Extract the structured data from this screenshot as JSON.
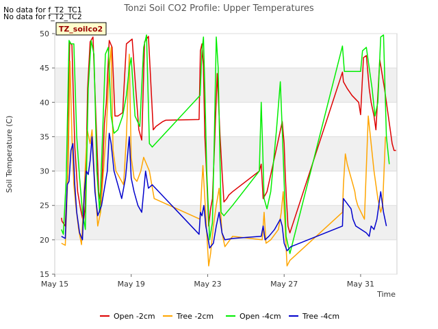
{
  "no_data": [
    "No data for f_T2_TC1",
    "No data for f_T2_TC2"
  ],
  "site_label": "TZ_soilco2",
  "chart_data": {
    "type": "line",
    "title": "Tonzi Soil CO2 Profile: Upper Temperatures",
    "xlabel": "Time",
    "ylabel": "Soil Temperature (C)",
    "ylim": [
      15,
      50
    ],
    "yticks": [
      15,
      20,
      25,
      30,
      35,
      40,
      45,
      50
    ],
    "xlim": [
      15,
      32.9
    ],
    "xticks": [
      {
        "v": 15,
        "label": "May 15"
      },
      {
        "v": 19,
        "label": "May 19"
      },
      {
        "v": 23,
        "label": "May 23"
      },
      {
        "v": 27,
        "label": "May 27"
      },
      {
        "v": 31,
        "label": "May 31"
      }
    ],
    "grid": true,
    "legend": "bottom",
    "series": [
      {
        "name": "Open -2cm",
        "color": "#dd0000",
        "x": [
          15.35,
          15.38,
          15.55,
          15.68,
          15.78,
          15.9,
          16.05,
          16.2,
          16.35,
          16.5,
          16.6,
          16.72,
          16.85,
          17.0,
          17.15,
          17.3,
          17.42,
          17.6,
          17.7,
          17.85,
          18.0,
          18.15,
          18.3,
          18.4,
          18.55,
          18.75,
          19.05,
          19.25,
          19.4,
          19.55,
          19.7,
          19.9,
          20.15,
          20.3,
          20.45,
          20.55,
          20.65,
          20.8,
          22.55,
          22.62,
          22.7,
          22.78,
          22.85,
          22.95,
          23.05,
          23.15,
          23.25,
          23.35,
          23.5,
          23.65,
          23.75,
          23.85,
          24.0,
          24.1,
          24.3,
          25.7,
          25.8,
          25.9,
          26.1,
          26.5,
          26.9,
          27.0,
          27.05,
          27.12,
          27.2,
          27.3,
          30.05,
          30.1,
          30.3,
          30.55,
          30.9,
          31.0,
          31.15,
          31.3,
          31.45,
          31.55,
          31.7,
          31.8,
          32.0,
          32.25,
          32.45,
          32.55,
          32.65,
          32.75,
          32.85
        ],
        "y": [
          23.2,
          22.7,
          22.0,
          29.5,
          48.8,
          48.3,
          33.5,
          27.0,
          24.5,
          22.5,
          25.0,
          42.0,
          48.8,
          49.5,
          38.0,
          27.0,
          25.0,
          37.0,
          40.0,
          49.0,
          48.0,
          38.0,
          38.0,
          38.2,
          38.5,
          48.5,
          49.2,
          41.5,
          36.0,
          34.5,
          48.8,
          49.6,
          36.0,
          36.5,
          36.8,
          37.0,
          37.2,
          37.4,
          37.5,
          47.5,
          48.5,
          45.0,
          35.0,
          29.0,
          22.0,
          24.5,
          26.0,
          33.0,
          44.2,
          35.0,
          30.0,
          25.5,
          26.0,
          26.5,
          27.0,
          30.0,
          31.0,
          26.0,
          27.0,
          32.0,
          37.2,
          34.0,
          30.0,
          26.0,
          22.0,
          21.0,
          44.4,
          43.0,
          42.0,
          41.0,
          40.0,
          38.2,
          46.5,
          46.8,
          42.0,
          40.0,
          38.0,
          36.0,
          46.2,
          42.0,
          38.0,
          36.0,
          34.0,
          33.0,
          33.0
        ]
      },
      {
        "name": "Tree -2cm",
        "color": "#ffa500",
        "x": [
          15.35,
          15.55,
          15.7,
          15.8,
          15.9,
          16.0,
          16.1,
          16.25,
          16.4,
          16.55,
          16.7,
          16.85,
          16.95,
          17.1,
          17.25,
          17.4,
          17.55,
          17.7,
          17.85,
          17.95,
          18.05,
          18.2,
          18.4,
          18.6,
          18.75,
          18.9,
          19.0,
          19.15,
          19.3,
          19.5,
          19.65,
          19.8,
          19.95,
          20.2,
          22.6,
          22.68,
          22.75,
          22.85,
          22.95,
          23.05,
          23.15,
          23.3,
          23.45,
          23.6,
          23.75,
          23.9,
          24.3,
          25.85,
          25.95,
          26.05,
          26.3,
          26.7,
          26.85,
          26.95,
          27.05,
          27.15,
          27.3,
          30.05,
          30.1,
          30.2,
          30.3,
          30.4,
          30.5,
          30.6,
          30.7,
          30.75,
          30.85,
          31.2,
          31.4,
          31.55,
          31.7,
          31.8,
          31.9,
          32.05,
          32.15,
          32.3
        ],
        "y": [
          19.5,
          19.2,
          30.5,
          46.0,
          35.0,
          28.0,
          25.0,
          21.5,
          19.3,
          28.0,
          36.0,
          34.0,
          36.0,
          28.0,
          22.0,
          24.0,
          30.0,
          36.0,
          45.0,
          48.0,
          33.0,
          30.0,
          29.0,
          28.0,
          35.0,
          47.0,
          32.0,
          29.0,
          28.5,
          30.0,
          32.0,
          31.0,
          30.0,
          26.0,
          23.0,
          27.4,
          30.8,
          26.0,
          21.0,
          16.2,
          18.0,
          22.0,
          25.0,
          27.5,
          21.0,
          19.0,
          20.5,
          20.0,
          24.0,
          19.5,
          20.0,
          21.5,
          24.0,
          27.0,
          22.0,
          16.2,
          17.0,
          24.0,
          28.0,
          32.5,
          31.0,
          30.0,
          29.0,
          28.0,
          27.0,
          26.0,
          25.0,
          23.0,
          38.0,
          34.0,
          30.0,
          28.0,
          26.0,
          24.0,
          25.0,
          35.0
        ]
      },
      {
        "name": "Open -4cm",
        "color": "#00ee00",
        "x": [
          15.35,
          15.45,
          15.6,
          15.75,
          15.85,
          16.0,
          16.15,
          16.3,
          16.45,
          16.6,
          16.75,
          16.9,
          17.05,
          17.2,
          17.35,
          17.5,
          17.65,
          17.8,
          17.95,
          18.1,
          18.3,
          18.55,
          18.75,
          18.9,
          19.0,
          19.2,
          19.45,
          19.65,
          19.8,
          19.95,
          20.1,
          22.6,
          22.7,
          22.78,
          22.85,
          22.95,
          23.1,
          23.25,
          23.35,
          23.45,
          23.55,
          23.7,
          23.85,
          24.0,
          24.3,
          25.7,
          25.8,
          25.88,
          25.95,
          26.1,
          26.3,
          26.6,
          26.8,
          26.9,
          26.98,
          27.1,
          27.3,
          30.05,
          30.15,
          30.4,
          31.0,
          31.1,
          31.3,
          31.6,
          31.75,
          31.9,
          32.05,
          32.2,
          32.35,
          32.5
        ],
        "y": [
          21.5,
          20.8,
          29.0,
          49.0,
          48.5,
          48.5,
          35.0,
          29.0,
          24.0,
          21.5,
          42.0,
          49.0,
          47.0,
          30.0,
          24.0,
          35.0,
          47.0,
          48.0,
          38.0,
          35.5,
          36.0,
          38.0,
          41.0,
          45.0,
          46.5,
          38.0,
          36.5,
          48.0,
          49.8,
          34.0,
          33.5,
          41.0,
          47.5,
          49.5,
          42.0,
          30.0,
          20.0,
          22.5,
          35.0,
          49.5,
          45.0,
          24.0,
          23.5,
          24.0,
          25.0,
          30.0,
          40.0,
          33.0,
          26.0,
          24.5,
          27.0,
          36.0,
          43.0,
          36.0,
          30.0,
          20.5,
          18.0,
          48.2,
          44.5,
          44.5,
          44.5,
          47.5,
          48.0,
          42.0,
          38.0,
          40.0,
          49.5,
          49.8,
          35.0,
          31.0
        ]
      },
      {
        "name": "Tree -4cm",
        "color": "#0000cc",
        "x": [
          15.35,
          15.55,
          15.65,
          15.75,
          15.85,
          15.95,
          16.05,
          16.15,
          16.3,
          16.45,
          16.55,
          16.65,
          16.75,
          16.85,
          16.95,
          17.1,
          17.25,
          17.45,
          17.6,
          17.75,
          17.85,
          17.95,
          18.1,
          18.3,
          18.5,
          18.7,
          18.9,
          19.0,
          19.15,
          19.35,
          19.55,
          19.75,
          19.9,
          20.1,
          22.55,
          22.62,
          22.7,
          22.8,
          22.9,
          23.0,
          23.1,
          23.3,
          23.45,
          23.6,
          23.75,
          23.9,
          24.3,
          25.8,
          25.9,
          26.0,
          26.2,
          26.5,
          26.8,
          26.9,
          27.0,
          27.15,
          27.35,
          30.05,
          30.1,
          30.5,
          30.6,
          30.75,
          31.3,
          31.45,
          31.55,
          31.7,
          31.85,
          32.05,
          32.2,
          32.35
        ],
        "y": [
          20.5,
          20.2,
          28.0,
          28.5,
          33.0,
          34.0,
          28.0,
          24.0,
          21.0,
          20.0,
          27.0,
          30.0,
          29.5,
          31.5,
          35.0,
          27.0,
          23.5,
          25.0,
          27.5,
          30.0,
          35.5,
          34.0,
          30.0,
          28.0,
          26.0,
          29.0,
          35.0,
          29.0,
          27.0,
          25.0,
          24.0,
          30.0,
          27.5,
          28.0,
          20.8,
          24.0,
          23.5,
          25.0,
          22.0,
          20.5,
          18.8,
          19.5,
          22.0,
          24.0,
          21.0,
          20.0,
          20.2,
          20.5,
          22.0,
          20.0,
          20.5,
          21.5,
          23.0,
          22.0,
          19.5,
          18.4,
          19.0,
          22.0,
          26.0,
          24.5,
          23.0,
          22.0,
          21.0,
          20.5,
          22.0,
          21.5,
          23.0,
          27.0,
          24.0,
          22.0
        ]
      }
    ]
  }
}
